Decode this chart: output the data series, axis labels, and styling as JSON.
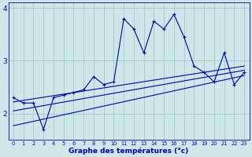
{
  "x_labels": [
    "0",
    "1",
    "2",
    "3",
    "4",
    "5",
    "6",
    "7",
    "8",
    "9",
    "10",
    "11",
    "12",
    "13",
    "14",
    "15",
    "16",
    "17",
    "18",
    "19",
    "20",
    "21",
    "22",
    "23"
  ],
  "xlabel": "Graphe des températures (°c)",
  "ylim": [
    1.5,
    4.1
  ],
  "yticks": [
    2,
    3,
    4
  ],
  "xlim": [
    -0.5,
    23.5
  ],
  "bg_color": "#cce8e8",
  "grid_color": "#aacccc",
  "line_color": "#0000bb",
  "axis_label_color": "#0000bb",
  "tick_color": "#0000bb",
  "line1_x": [
    0,
    1,
    2,
    3,
    4,
    5,
    6,
    7,
    8,
    9,
    10,
    11,
    12,
    13,
    14,
    15,
    16,
    17,
    18,
    19,
    20,
    21,
    22,
    23
  ],
  "line1_y": [
    2.3,
    2.2,
    2.2,
    1.7,
    2.3,
    2.35,
    2.4,
    2.45,
    2.7,
    2.55,
    2.6,
    3.8,
    3.6,
    3.15,
    3.75,
    3.6,
    3.88,
    3.45,
    2.9,
    2.78,
    2.6,
    3.15,
    2.55,
    2.78
  ],
  "line2_x": [
    0,
    23
  ],
  "line2_y": [
    1.77,
    2.72
  ],
  "line3_x": [
    0,
    23
  ],
  "line3_y": [
    2.05,
    2.82
  ],
  "line4_x": [
    0,
    23
  ],
  "line4_y": [
    2.22,
    2.9
  ]
}
